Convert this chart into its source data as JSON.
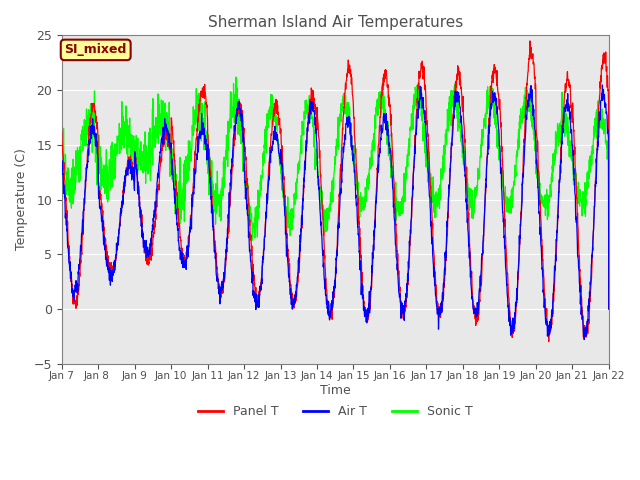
{
  "title": "Sherman Island Air Temperatures",
  "xlabel": "Time",
  "ylabel": "Temperature (C)",
  "ylim": [
    -5,
    25
  ],
  "annotation_text": "SI_mixed",
  "annotation_color": "#8B0000",
  "annotation_bg": "#FFFF99",
  "legend_labels": [
    "Panel T",
    "Air T",
    "Sonic T"
  ],
  "legend_colors": [
    "red",
    "blue",
    "lime"
  ],
  "xtick_labels": [
    "Jan 7",
    "Jan 8 ",
    "Jan 9",
    "Jan 10",
    "Jan 11",
    "Jan 12",
    "Jan 13",
    "Jan 14",
    "Jan 15",
    "Jan 16",
    "Jan 17",
    "Jan 18",
    "Jan 19",
    "Jan 20",
    "Jan 21",
    "Jan 22"
  ],
  "bg_color": "#E8E8E8",
  "title_color": "#505050",
  "axis_label_color": "#505050",
  "tick_color": "#505050",
  "panel_daily": {
    "mins": [
      0.5,
      3.5,
      4.5,
      4.5,
      1.5,
      1.0,
      0.5,
      -0.5,
      -1.0,
      -0.5,
      -0.5,
      -1.0,
      -2.0,
      -2.0,
      -2.5
    ],
    "maxs": [
      18.5,
      13.5,
      16.0,
      20.0,
      18.5,
      18.5,
      19.5,
      22.0,
      21.5,
      22.0,
      21.5,
      22.0,
      23.5,
      21.0,
      23.0
    ]
  },
  "air_daily": {
    "mins": [
      1.5,
      3.0,
      5.0,
      4.0,
      1.5,
      0.5,
      0.5,
      -0.5,
      -0.5,
      -0.5,
      -0.5,
      -0.5,
      -2.0,
      -2.0,
      -2.0
    ],
    "maxs": [
      16.5,
      13.0,
      16.5,
      16.5,
      18.5,
      16.0,
      18.5,
      17.0,
      17.5,
      19.5,
      19.5,
      19.5,
      19.5,
      19.0,
      19.5
    ]
  },
  "sonic_daily": {
    "mins": [
      11.0,
      12.0,
      13.5,
      10.0,
      9.5,
      7.5,
      8.0,
      8.0,
      9.5,
      9.0,
      9.5,
      9.5,
      9.5,
      9.5,
      9.5
    ],
    "maxs": [
      17.0,
      16.5,
      17.0,
      18.5,
      18.5,
      18.5,
      18.5,
      19.0,
      19.0,
      19.5,
      19.5,
      19.5,
      19.5,
      17.5,
      17.5
    ]
  },
  "panel_peak_time": 0.62,
  "air_peak_time": 0.6,
  "sonic_peak_time": 0.5,
  "noise_panel": 0.35,
  "noise_air": 0.4,
  "noise_sonic": 0.7
}
